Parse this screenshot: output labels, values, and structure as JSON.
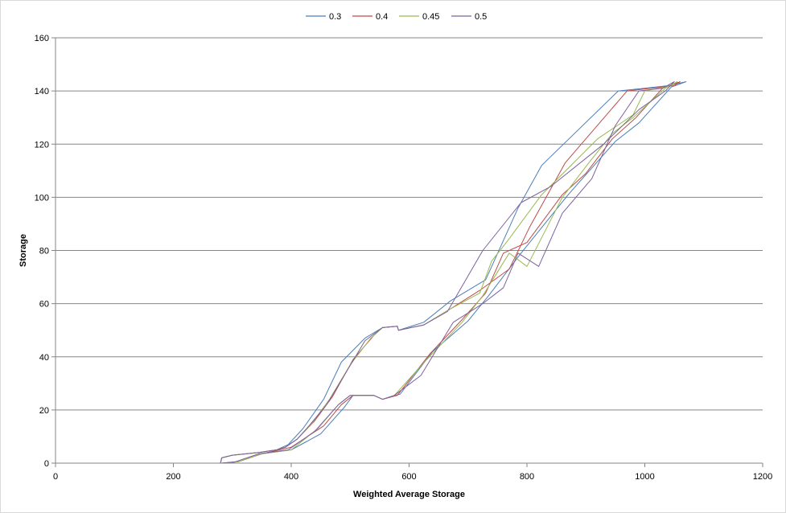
{
  "chart_data": {
    "type": "line",
    "xlabel": "Weighted Average Storage",
    "ylabel": "Storage",
    "xlim": [
      0,
      1200
    ],
    "ylim": [
      0,
      160
    ],
    "xticks": [
      "0",
      "200",
      "400",
      "600",
      "800",
      "1000",
      "1200"
    ],
    "yticks": [
      "0",
      "20",
      "40",
      "60",
      "80",
      "100",
      "120",
      "140",
      "160"
    ],
    "grid": "horizontal major gridlines",
    "legend_position": "top",
    "series": [
      {
        "name": "0.3",
        "color": "#4a7ebb",
        "x": [
          280,
          282,
          300,
          345,
          375,
          395,
          420,
          455,
          485,
          525,
          555,
          580,
          582,
          625,
          670,
          730,
          785,
          825,
          955,
          1000,
          1040,
          1070,
          1045,
          990,
          950,
          870,
          830,
          790,
          735,
          700,
          640,
          585,
          555,
          540,
          505,
          490,
          450,
          400,
          350,
          310,
          282
        ],
        "y": [
          0,
          2,
          3,
          4,
          5,
          7,
          13,
          24,
          38,
          47,
          51,
          51.5,
          50,
          53,
          61,
          69,
          96,
          112,
          140,
          141,
          142,
          143.5,
          141.5,
          128,
          121,
          101,
          90,
          79,
          63,
          53.5,
          42,
          26,
          24,
          25.5,
          25.5,
          21,
          11,
          5,
          3.5,
          0.5,
          0
        ]
      },
      {
        "name": "0.4",
        "color": "#be4b48",
        "x": [
          280,
          282,
          300,
          345,
          375,
          390,
          410,
          440,
          470,
          505,
          540,
          555,
          580,
          582,
          625,
          670,
          720,
          770,
          805,
          865,
          970,
          1010,
          1050,
          1060,
          1030,
          985,
          945,
          900,
          860,
          800,
          760,
          730,
          690,
          635,
          580,
          555,
          540,
          505,
          485,
          455,
          400,
          350,
          310,
          282
        ],
        "y": [
          0,
          2,
          3,
          4,
          5,
          6,
          9,
          16,
          25,
          39,
          48,
          51,
          51.5,
          50,
          52,
          58,
          65,
          73,
          89,
          113,
          140,
          141,
          142,
          143.5,
          141,
          130,
          122,
          109,
          101,
          83,
          79,
          64,
          54,
          41,
          25.5,
          24,
          25.5,
          25.5,
          22,
          14,
          6,
          3.5,
          0.5,
          0
        ]
      },
      {
        "name": "0.45",
        "color": "#98b954",
        "x": [
          280,
          282,
          300,
          345,
          375,
          390,
          410,
          435,
          465,
          500,
          535,
          555,
          580,
          582,
          625,
          670,
          720,
          740,
          765,
          825,
          920,
          980,
          1000,
          1045,
          1055,
          1035,
          980,
          945,
          905,
          860,
          800,
          770,
          725,
          690,
          630,
          575,
          555,
          540,
          500,
          480,
          445,
          400,
          350,
          310,
          282
        ],
        "y": [
          0,
          2,
          3,
          4,
          5,
          6,
          9,
          15,
          24,
          37,
          47,
          51,
          51.5,
          50,
          52,
          58,
          64,
          76,
          83,
          101,
          122,
          131,
          140,
          142,
          143.5,
          141,
          130,
          124,
          113,
          100,
          74,
          79,
          63,
          53,
          39,
          25.5,
          24,
          25.5,
          25.5,
          22,
          13,
          5,
          3.5,
          0.5,
          0
        ]
      },
      {
        "name": "0.5",
        "color": "#7d60a0",
        "x": [
          280,
          282,
          300,
          345,
          375,
          390,
          410,
          430,
          460,
          490,
          525,
          555,
          580,
          582,
          625,
          665,
          725,
          790,
          840,
          930,
          990,
          1035,
          1050,
          1030,
          990,
          950,
          910,
          860,
          820,
          785,
          760,
          725,
          675,
          620,
          575,
          555,
          540,
          500,
          480,
          440,
          395,
          345,
          305,
          282
        ],
        "y": [
          0,
          2,
          3,
          4,
          5,
          6,
          9,
          14,
          22,
          33,
          46,
          51,
          51.5,
          50,
          52,
          57,
          80,
          98,
          104,
          120,
          133,
          140,
          143.5,
          141,
          140,
          127,
          107,
          94,
          74,
          79,
          66,
          60,
          53,
          33,
          25.5,
          24,
          25.5,
          25.5,
          22,
          12,
          5,
          3.5,
          0.5,
          0
        ]
      }
    ]
  }
}
